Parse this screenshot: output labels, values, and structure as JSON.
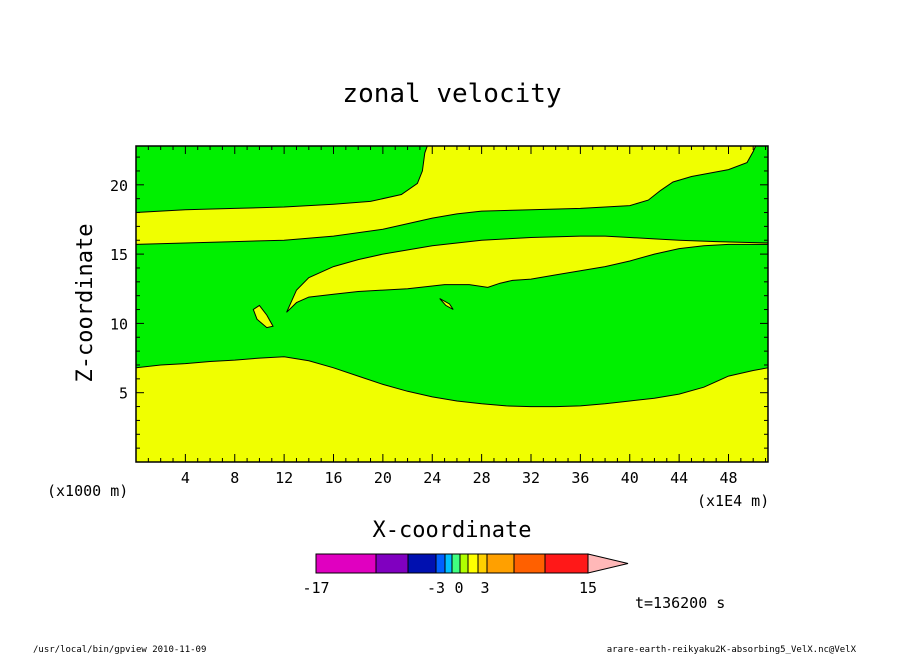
{
  "chart_data": {
    "type": "heatmap",
    "title": "zonal velocity",
    "xlabel": "X-coordinate",
    "ylabel": "Z-coordinate",
    "x_unit_note": "(x1000 m)",
    "x_scale_note": "(x1E4 m)",
    "x_ticks": [
      4,
      8,
      12,
      16,
      20,
      24,
      28,
      32,
      36,
      40,
      44,
      48
    ],
    "y_ticks": [
      5,
      10,
      15,
      20
    ],
    "xlim": [
      0,
      51.2
    ],
    "ylim": [
      0,
      22.8
    ],
    "colors": {
      "positive": "#f0ff00",
      "negative": "#00f000"
    },
    "regions": [
      {
        "sign": "positive",
        "points": [
          [
            0,
            0
          ],
          [
            51.2,
            0
          ],
          [
            51.2,
            6.8
          ],
          [
            50,
            6.6
          ],
          [
            48,
            6.2
          ],
          [
            46,
            5.4
          ],
          [
            44,
            4.9
          ],
          [
            42,
            4.6
          ],
          [
            40,
            4.4
          ],
          [
            38,
            4.2
          ],
          [
            36,
            4.05
          ],
          [
            34,
            4.0
          ],
          [
            32,
            4.0
          ],
          [
            30,
            4.05
          ],
          [
            28,
            4.2
          ],
          [
            26,
            4.4
          ],
          [
            24,
            4.7
          ],
          [
            22,
            5.1
          ],
          [
            20,
            5.6
          ],
          [
            18,
            6.2
          ],
          [
            16,
            6.8
          ],
          [
            14,
            7.3
          ],
          [
            12,
            7.6
          ],
          [
            10,
            7.5
          ],
          [
            8,
            7.35
          ],
          [
            6,
            7.25
          ],
          [
            4,
            7.1
          ],
          [
            2,
            7.0
          ],
          [
            0,
            6.8
          ]
        ]
      },
      {
        "sign": "positive",
        "points": [
          [
            0,
            15.7
          ],
          [
            4,
            15.8
          ],
          [
            8,
            15.9
          ],
          [
            12,
            16.0
          ],
          [
            16,
            16.3
          ],
          [
            20,
            16.8
          ],
          [
            24,
            17.6
          ],
          [
            26,
            17.9
          ],
          [
            28,
            18.1
          ],
          [
            32,
            18.2
          ],
          [
            36,
            18.3
          ],
          [
            40,
            18.5
          ],
          [
            41.5,
            18.9
          ],
          [
            42.5,
            19.6
          ],
          [
            43.5,
            20.2
          ],
          [
            45,
            20.6
          ],
          [
            48,
            21.1
          ],
          [
            49.5,
            21.6
          ],
          [
            50,
            22.4
          ],
          [
            50.2,
            22.8
          ],
          [
            23.6,
            22.8
          ],
          [
            23.4,
            22.3
          ],
          [
            23.2,
            21.0
          ],
          [
            22.8,
            20.1
          ],
          [
            21.5,
            19.3
          ],
          [
            19,
            18.8
          ],
          [
            16,
            18.6
          ],
          [
            12,
            18.4
          ],
          [
            8,
            18.3
          ],
          [
            4,
            18.2
          ],
          [
            0,
            18.0
          ]
        ]
      },
      {
        "sign": "positive",
        "points": [
          [
            12.2,
            10.8
          ],
          [
            13,
            11.5
          ],
          [
            14,
            11.9
          ],
          [
            16,
            12.1
          ],
          [
            18,
            12.3
          ],
          [
            20,
            12.4
          ],
          [
            22,
            12.5
          ],
          [
            24,
            12.7
          ],
          [
            25,
            12.8
          ],
          [
            27,
            12.8
          ],
          [
            28.5,
            12.6
          ],
          [
            29.5,
            12.9
          ],
          [
            30.5,
            13.1
          ],
          [
            32,
            13.2
          ],
          [
            34,
            13.5
          ],
          [
            36,
            13.8
          ],
          [
            38,
            14.1
          ],
          [
            40,
            14.5
          ],
          [
            42,
            15.0
          ],
          [
            44,
            15.4
          ],
          [
            46,
            15.6
          ],
          [
            48,
            15.7
          ],
          [
            51.2,
            15.7
          ],
          [
            51.2,
            15.8
          ],
          [
            47,
            15.9
          ],
          [
            44,
            16.0
          ],
          [
            42,
            16.1
          ],
          [
            40,
            16.2
          ],
          [
            38,
            16.3
          ],
          [
            36,
            16.3
          ],
          [
            32,
            16.2
          ],
          [
            28,
            16.0
          ],
          [
            24,
            15.6
          ],
          [
            20,
            15.0
          ],
          [
            18,
            14.6
          ],
          [
            16,
            14.1
          ],
          [
            14,
            13.3
          ],
          [
            13,
            12.4
          ]
        ]
      },
      {
        "sign": "positive",
        "points": [
          [
            10,
            11.3
          ],
          [
            10.6,
            10.6
          ],
          [
            11.1,
            9.8
          ],
          [
            10.6,
            9.7
          ],
          [
            9.8,
            10.3
          ],
          [
            9.5,
            11.0
          ]
        ]
      },
      {
        "sign": "positive",
        "points": [
          [
            24.6,
            11.8
          ],
          [
            25.4,
            11.4
          ],
          [
            25.7,
            11.0
          ],
          [
            25.1,
            11.3
          ]
        ]
      }
    ],
    "colorbar": {
      "labels": [
        "-17",
        "-3",
        "0",
        "3",
        "15"
      ],
      "bins": [
        "#e000c0",
        "#8000c0",
        "#0010b0",
        "#0060ff",
        "#00c0ff",
        "#40ff80",
        "#b0ff00",
        "#ffff00",
        "#ffd000",
        "#ffa000",
        "#ff6000",
        "#ff1818",
        "#ff8080"
      ],
      "extension_color": "#ffb8b8"
    },
    "time_label": "t=136200 s"
  },
  "footer": {
    "left": "/usr/local/bin/gpview  2010-11-09",
    "right": "arare-earth-reikyaku2K-absorbing5_VelX.nc@VelX"
  }
}
